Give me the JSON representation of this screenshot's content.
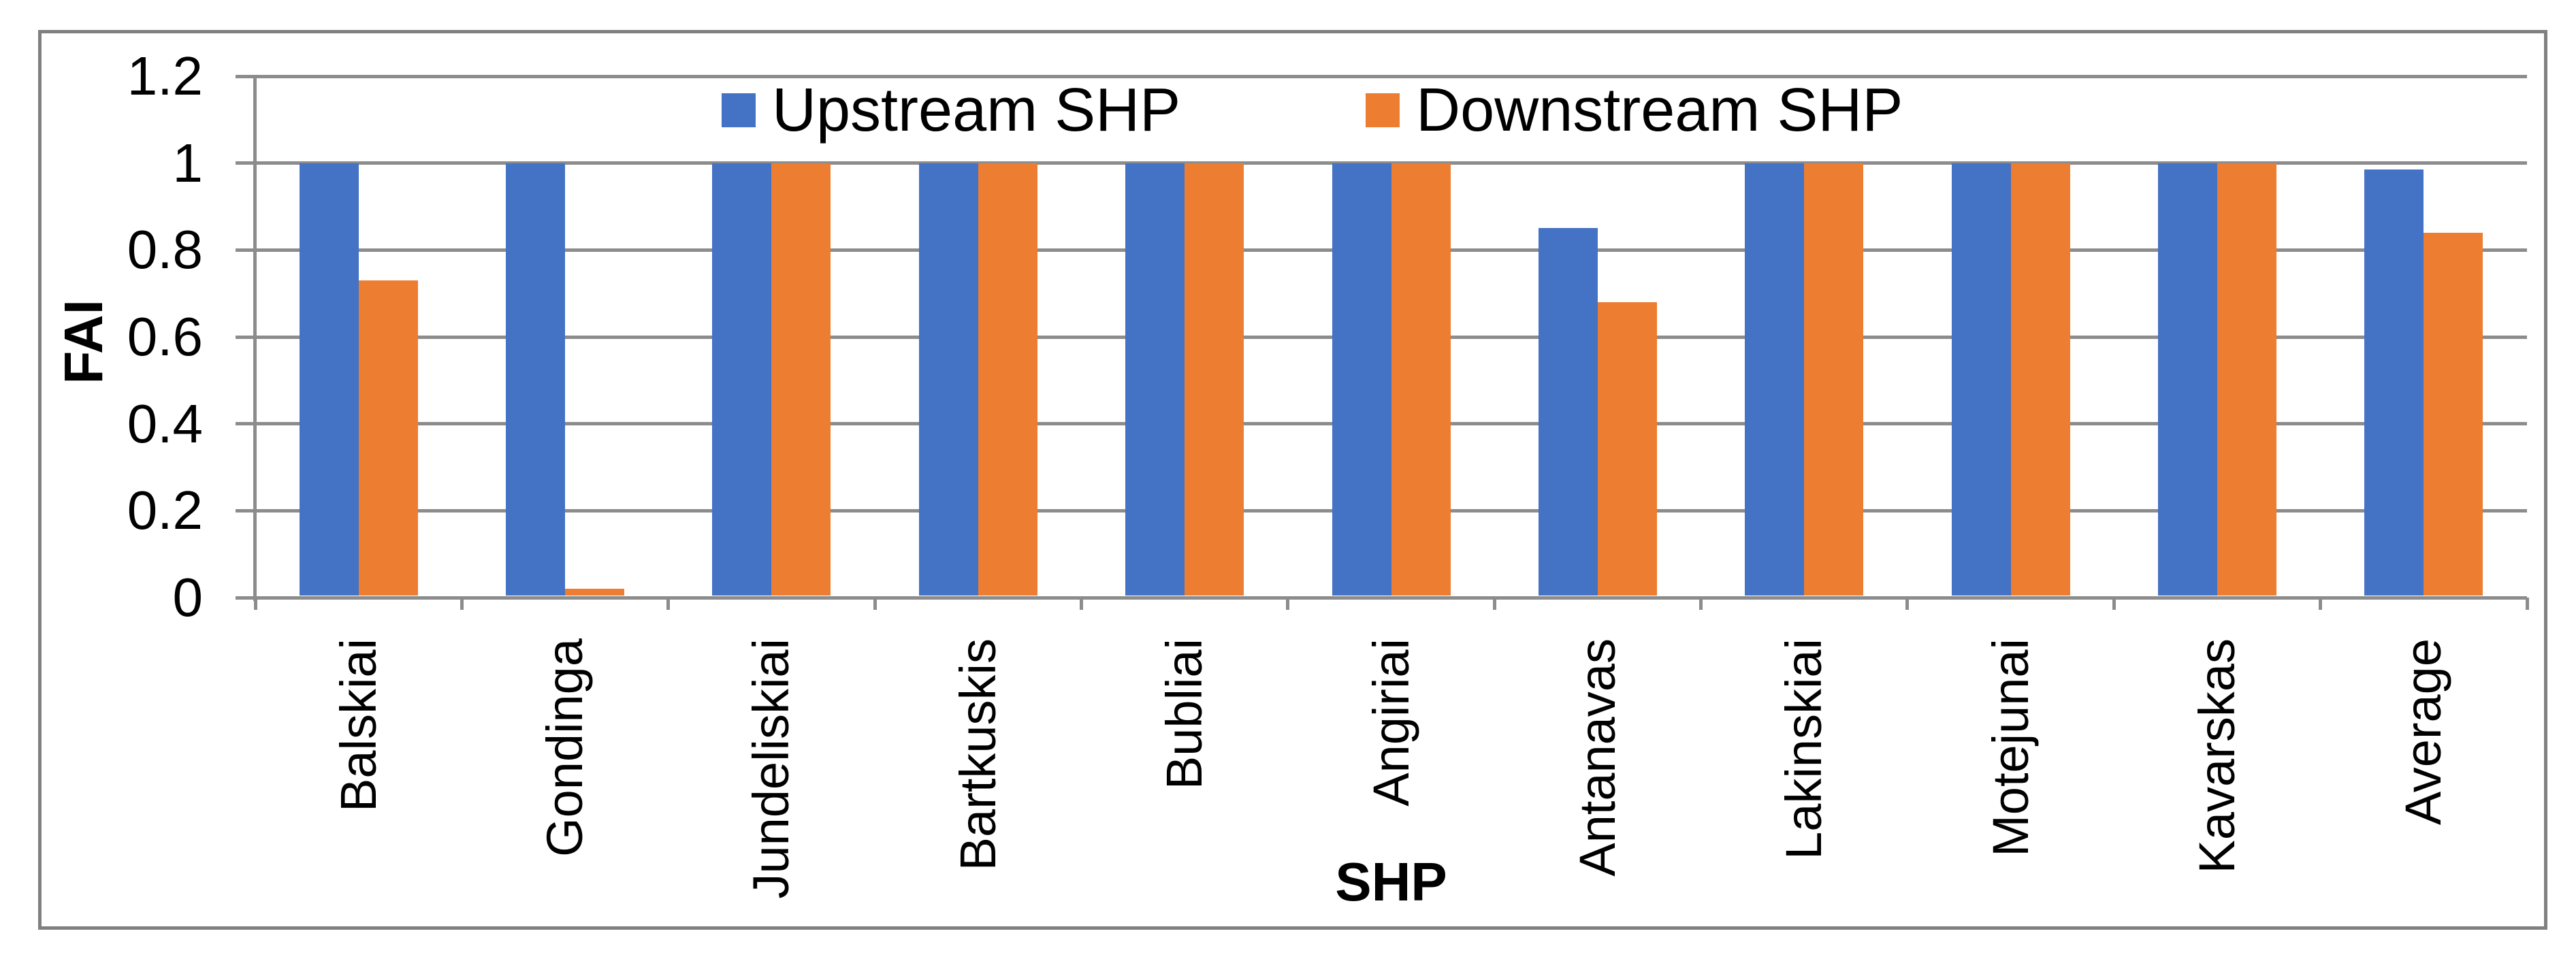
{
  "chart_data": {
    "type": "bar",
    "title": "",
    "xlabel": "SHP",
    "ylabel": "FAI",
    "ylim": [
      0,
      1.2
    ],
    "yticks": [
      0,
      0.2,
      0.4,
      0.6,
      0.8,
      1,
      1.2
    ],
    "grid": true,
    "legend_position": "top-center-inside",
    "categories": [
      "Balskiai",
      "Gondinga",
      "Jundeliskiai",
      "Bartkuskis",
      "Bubliai",
      "Angiriai",
      "Antanavas",
      "Lakinskiai",
      "Motejunai",
      "Kavarskas",
      "Average"
    ],
    "series": [
      {
        "name": "Upstream SHP",
        "color": "#4472C4",
        "values": [
          1,
          1,
          1,
          1,
          1,
          1,
          0.85,
          1,
          1,
          1,
          0.985
        ]
      },
      {
        "name": "Downstream SHP",
        "color": "#ED7D31",
        "values": [
          0.73,
          0.02,
          1,
          1,
          1,
          1,
          0.68,
          1,
          1,
          1,
          0.84
        ]
      }
    ],
    "colors": {
      "gridline": "#8C8C8C",
      "axis": "#8C8C8C",
      "figure_border": "#808080",
      "text": "#000000",
      "background": "#FFFFFF"
    }
  }
}
